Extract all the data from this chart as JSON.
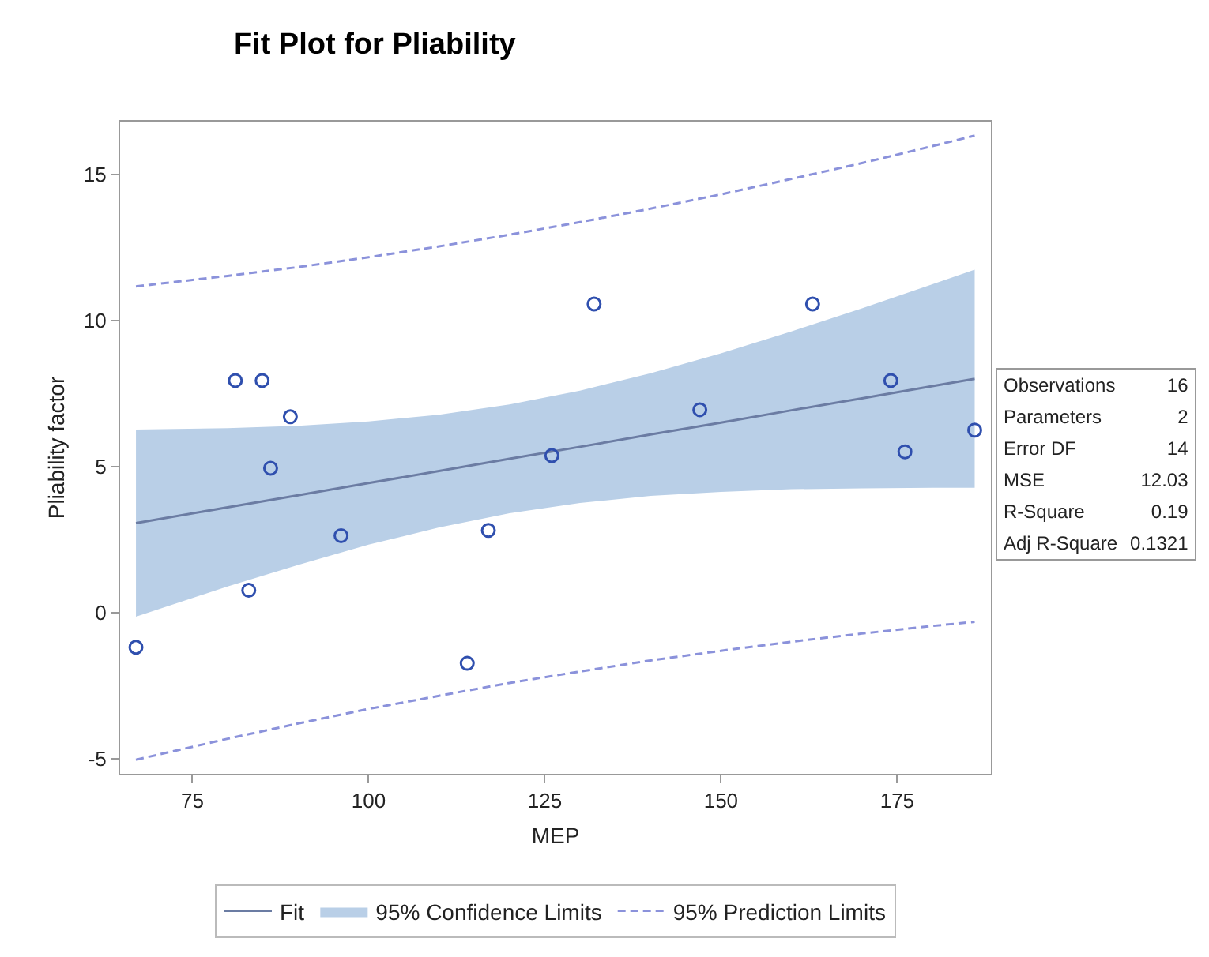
{
  "chart_data": {
    "type": "scatter",
    "title": "Fit Plot for Pliability",
    "xlabel": "MEP",
    "ylabel": "Pliability factor",
    "xlim": [
      64.75,
      188.3
    ],
    "ylim": [
      -5.52,
      16.8
    ],
    "xticks": [
      75,
      100,
      125,
      150,
      175
    ],
    "yticks": [
      -5,
      0,
      5,
      10,
      15
    ],
    "grid": false,
    "legend": "bottom",
    "series": [
      {
        "name": "Fit",
        "type": "line",
        "color": "#6b7ca3",
        "line_style": "solid",
        "marker": "none",
        "x": [
          67,
          80,
          90,
          100,
          110,
          120,
          130,
          140,
          150,
          160,
          170,
          180,
          186
        ],
        "values": [
          3.06,
          3.6,
          4.01,
          4.43,
          4.84,
          5.26,
          5.67,
          6.09,
          6.5,
          6.92,
          7.33,
          7.75,
          8.0
        ],
        "lower": [
          -0.14,
          0.89,
          1.63,
          2.32,
          2.91,
          3.4,
          3.75,
          3.99,
          4.13,
          4.22,
          4.25,
          4.27,
          4.27
        ],
        "upper": [
          6.26,
          6.31,
          6.39,
          6.54,
          6.77,
          7.12,
          7.59,
          8.19,
          8.87,
          9.62,
          10.41,
          11.23,
          11.73
        ]
      },
      {
        "name": "95% Prediction Limits",
        "type": "line",
        "color": "#8b92db",
        "line_style": "dashed",
        "marker": "none",
        "x": [
          67,
          80,
          90,
          100,
          110,
          120,
          130,
          140,
          150,
          160,
          170,
          180,
          186
        ],
        "values": [
          11.16,
          11.52,
          11.82,
          12.16,
          12.53,
          12.93,
          13.36,
          13.82,
          14.31,
          14.84,
          15.38,
          15.96,
          16.32
        ]
      },
      {
        "type": "line",
        "color": "#8b92db",
        "line_style": "dashed",
        "marker": "none",
        "x": [
          67,
          80,
          90,
          100,
          110,
          120,
          130,
          140,
          150,
          160,
          170,
          180,
          186
        ],
        "values": [
          -5.04,
          -4.32,
          -3.8,
          -3.3,
          -2.85,
          -2.41,
          -2.02,
          -1.64,
          -1.31,
          -1.0,
          -0.72,
          -0.46,
          -0.32
        ]
      },
      {
        "marker": "circle",
        "color": "#2f4fae",
        "x": [
          67,
          81.1,
          84.9,
          83,
          86.1,
          88.9,
          96.1,
          114,
          117,
          126,
          132,
          147,
          163,
          174.1,
          176.1,
          186
        ],
        "values": [
          -1.19,
          7.94,
          7.94,
          0.76,
          4.94,
          6.7,
          2.63,
          -1.74,
          2.81,
          5.37,
          10.56,
          6.94,
          10.56,
          7.94,
          5.5,
          6.24
        ]
      }
    ],
    "annotations": [
      "95% Confidence Limits",
      "Observations",
      "16",
      "Parameters",
      "2",
      "Error DF",
      "14",
      "MSE",
      "12.03",
      "R-Square",
      "0.19",
      "Adj R-Square",
      "0.1321"
    ]
  }
}
